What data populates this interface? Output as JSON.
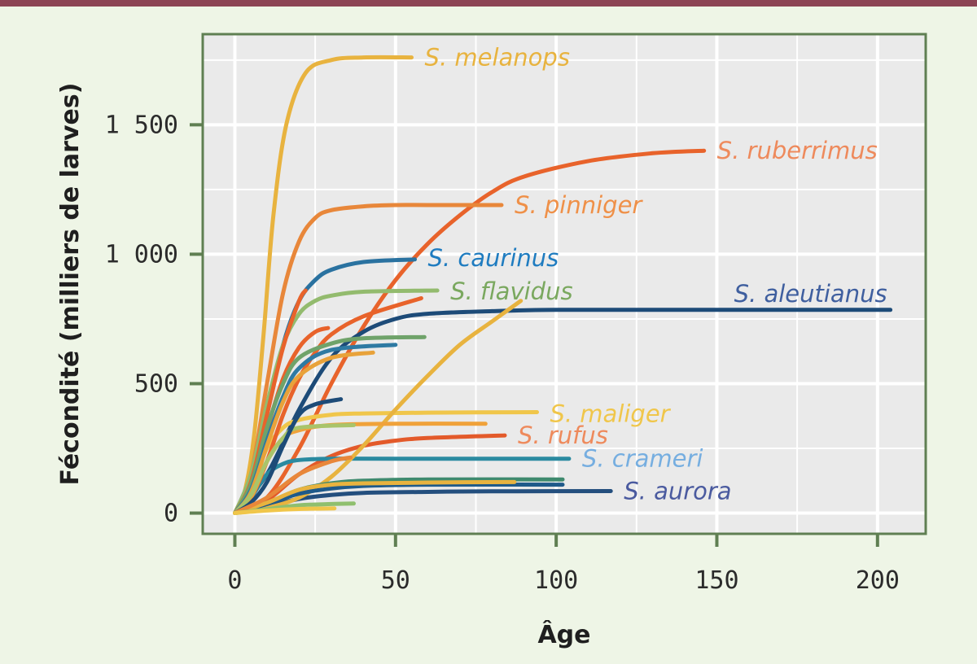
{
  "chart_data": {
    "type": "line",
    "title": "",
    "xlabel": "Âge",
    "ylabel": "Fécondité (milliers de larves)",
    "xlim": [
      -10,
      215
    ],
    "ylim": [
      -80,
      1850
    ],
    "x_ticks": [
      0,
      50,
      100,
      150,
      200
    ],
    "x_tick_labels": [
      "0",
      "50",
      "100",
      "150",
      "200"
    ],
    "y_ticks": [
      0,
      500,
      1000,
      1500
    ],
    "y_tick_labels": [
      "0",
      "500",
      "1 000",
      "1 500"
    ],
    "grid": true,
    "legend": "none",
    "colors": {
      "background": "#eef5e6",
      "plot_background": "#eaeaea",
      "grid": "#ffffff",
      "frame": "#5f7f52",
      "top_band": "#8c4454"
    },
    "series": [
      {
        "name": "S. melanops",
        "color": "#e8b33f",
        "label_color": "#e8b33f",
        "x": [
          0,
          3,
          6,
          9,
          12,
          16,
          22,
          30,
          40,
          55
        ],
        "y": [
          0,
          80,
          300,
          700,
          1150,
          1500,
          1700,
          1750,
          1760,
          1760
        ]
      },
      {
        "name": "S. ruberrimus",
        "color": "#e8632b",
        "label_color": "#ee8a5c",
        "x": [
          0,
          10,
          20,
          30,
          40,
          50,
          60,
          70,
          80,
          90,
          110,
          130,
          146
        ],
        "y": [
          0,
          60,
          250,
          500,
          720,
          900,
          1040,
          1150,
          1240,
          1300,
          1360,
          1390,
          1400
        ]
      },
      {
        "name": "S. pinniger",
        "color": "#e8873a",
        "label_color": "#ef9048",
        "x": [
          0,
          5,
          10,
          15,
          20,
          25,
          30,
          40,
          50,
          60,
          83
        ],
        "y": [
          0,
          150,
          500,
          850,
          1050,
          1140,
          1170,
          1185,
          1190,
          1190,
          1190
        ]
      },
      {
        "name": "S. caurinus",
        "color": "#2a72a0",
        "label_color": "#1f7cc0",
        "x": [
          0,
          5,
          10,
          15,
          20,
          25,
          30,
          40,
          56
        ],
        "y": [
          0,
          120,
          380,
          650,
          820,
          900,
          940,
          970,
          980
        ]
      },
      {
        "name": "S. flavidus",
        "color": "#93bb6e",
        "label_color": "#7aa85f",
        "x": [
          0,
          5,
          10,
          15,
          20,
          25,
          30,
          40,
          63
        ],
        "y": [
          0,
          150,
          420,
          650,
          770,
          820,
          840,
          855,
          860
        ]
      },
      {
        "name": "S. aleutianus",
        "color": "#1d4b78",
        "label_color": "#3f5f9f",
        "x": [
          0,
          10,
          20,
          30,
          40,
          50,
          60,
          80,
          100,
          150,
          204
        ],
        "y": [
          0,
          150,
          400,
          600,
          700,
          750,
          770,
          780,
          785,
          785,
          785
        ]
      },
      {
        "name": "S. maliger",
        "color": "#f0c64a",
        "label_color": "#f0c64a",
        "x": [
          0,
          5,
          10,
          15,
          20,
          30,
          40,
          60,
          94
        ],
        "y": [
          0,
          100,
          250,
          330,
          360,
          380,
          385,
          388,
          390
        ]
      },
      {
        "name": "S. rufus",
        "color": "#e35a2a",
        "label_color": "#ee8a5c",
        "x": [
          0,
          10,
          20,
          30,
          40,
          50,
          60,
          84
        ],
        "y": [
          0,
          50,
          150,
          220,
          260,
          280,
          290,
          300
        ]
      },
      {
        "name": "S. crameri",
        "color": "#2a8aa0",
        "label_color": "#76aee0",
        "x": [
          0,
          5,
          10,
          15,
          20,
          30,
          50,
          104
        ],
        "y": [
          0,
          60,
          150,
          190,
          205,
          210,
          210,
          210
        ]
      },
      {
        "name": "S. aurora",
        "color": "#244f7e",
        "label_color": "#4a5a9f",
        "x": [
          0,
          10,
          20,
          30,
          40,
          60,
          80,
          117
        ],
        "y": [
          0,
          25,
          55,
          70,
          78,
          82,
          84,
          85
        ]
      },
      {
        "color": "#e8b33f",
        "x": [
          0,
          10,
          20,
          30,
          40,
          50,
          60,
          70,
          80,
          89
        ],
        "y": [
          0,
          20,
          60,
          140,
          260,
          400,
          530,
          650,
          740,
          820
        ]
      },
      {
        "color": "#e8632b",
        "x": [
          0,
          5,
          10,
          15,
          20,
          25,
          30,
          40,
          58
        ],
        "y": [
          0,
          60,
          200,
          380,
          520,
          620,
          690,
          760,
          830
        ]
      },
      {
        "color": "#e8632b",
        "x": [
          0,
          5,
          10,
          15,
          20,
          22
        ],
        "y": [
          0,
          120,
          380,
          640,
          820,
          860
        ]
      },
      {
        "color": "#e8632b",
        "x": [
          0,
          5,
          10,
          15,
          20,
          25,
          29
        ],
        "y": [
          0,
          100,
          320,
          520,
          640,
          700,
          715
        ]
      },
      {
        "color": "#6fa36a",
        "x": [
          0,
          5,
          10,
          15,
          20,
          30,
          40,
          59
        ],
        "y": [
          0,
          110,
          330,
          500,
          600,
          655,
          675,
          680
        ]
      },
      {
        "color": "#2e7aa3",
        "x": [
          0,
          5,
          10,
          15,
          20,
          30,
          50
        ],
        "y": [
          0,
          90,
          280,
          450,
          560,
          630,
          650
        ]
      },
      {
        "color": "#e8a23a",
        "x": [
          0,
          5,
          10,
          15,
          20,
          30,
          43
        ],
        "y": [
          0,
          80,
          260,
          430,
          530,
          600,
          620
        ]
      },
      {
        "color": "#f0a23a",
        "x": [
          0,
          5,
          10,
          15,
          20,
          30,
          50,
          78
        ],
        "y": [
          0,
          60,
          200,
          290,
          320,
          340,
          345,
          345
        ]
      },
      {
        "color": "#a9c46a",
        "x": [
          0,
          5,
          10,
          15,
          20,
          37
        ],
        "y": [
          0,
          70,
          200,
          290,
          330,
          340
        ]
      },
      {
        "color": "#1d4b78",
        "x": [
          0,
          5,
          10,
          15,
          20,
          25,
          33
        ],
        "y": [
          0,
          40,
          120,
          260,
          380,
          420,
          440
        ]
      },
      {
        "color": "#3f8a6e",
        "x": [
          0,
          10,
          20,
          30,
          40,
          60,
          102
        ],
        "y": [
          0,
          40,
          90,
          115,
          125,
          130,
          130
        ]
      },
      {
        "color": "#1f5a8a",
        "x": [
          0,
          10,
          20,
          30,
          40,
          60,
          102
        ],
        "y": [
          0,
          35,
          75,
          95,
          105,
          110,
          110
        ]
      },
      {
        "color": "#e8b33f",
        "x": [
          0,
          10,
          20,
          30,
          40,
          60,
          87
        ],
        "y": [
          0,
          40,
          90,
          110,
          115,
          118,
          120
        ]
      },
      {
        "color": "#e8873a",
        "x": [
          0,
          10,
          20,
          30,
          36
        ],
        "y": [
          0,
          60,
          150,
          200,
          215
        ]
      },
      {
        "color": "#8fbf6e",
        "x": [
          0,
          10,
          20,
          30,
          37
        ],
        "y": [
          0,
          15,
          30,
          35,
          37
        ]
      },
      {
        "color": "#f0c64a",
        "x": [
          0,
          10,
          20,
          31
        ],
        "y": [
          0,
          10,
          16,
          18
        ]
      }
    ]
  }
}
